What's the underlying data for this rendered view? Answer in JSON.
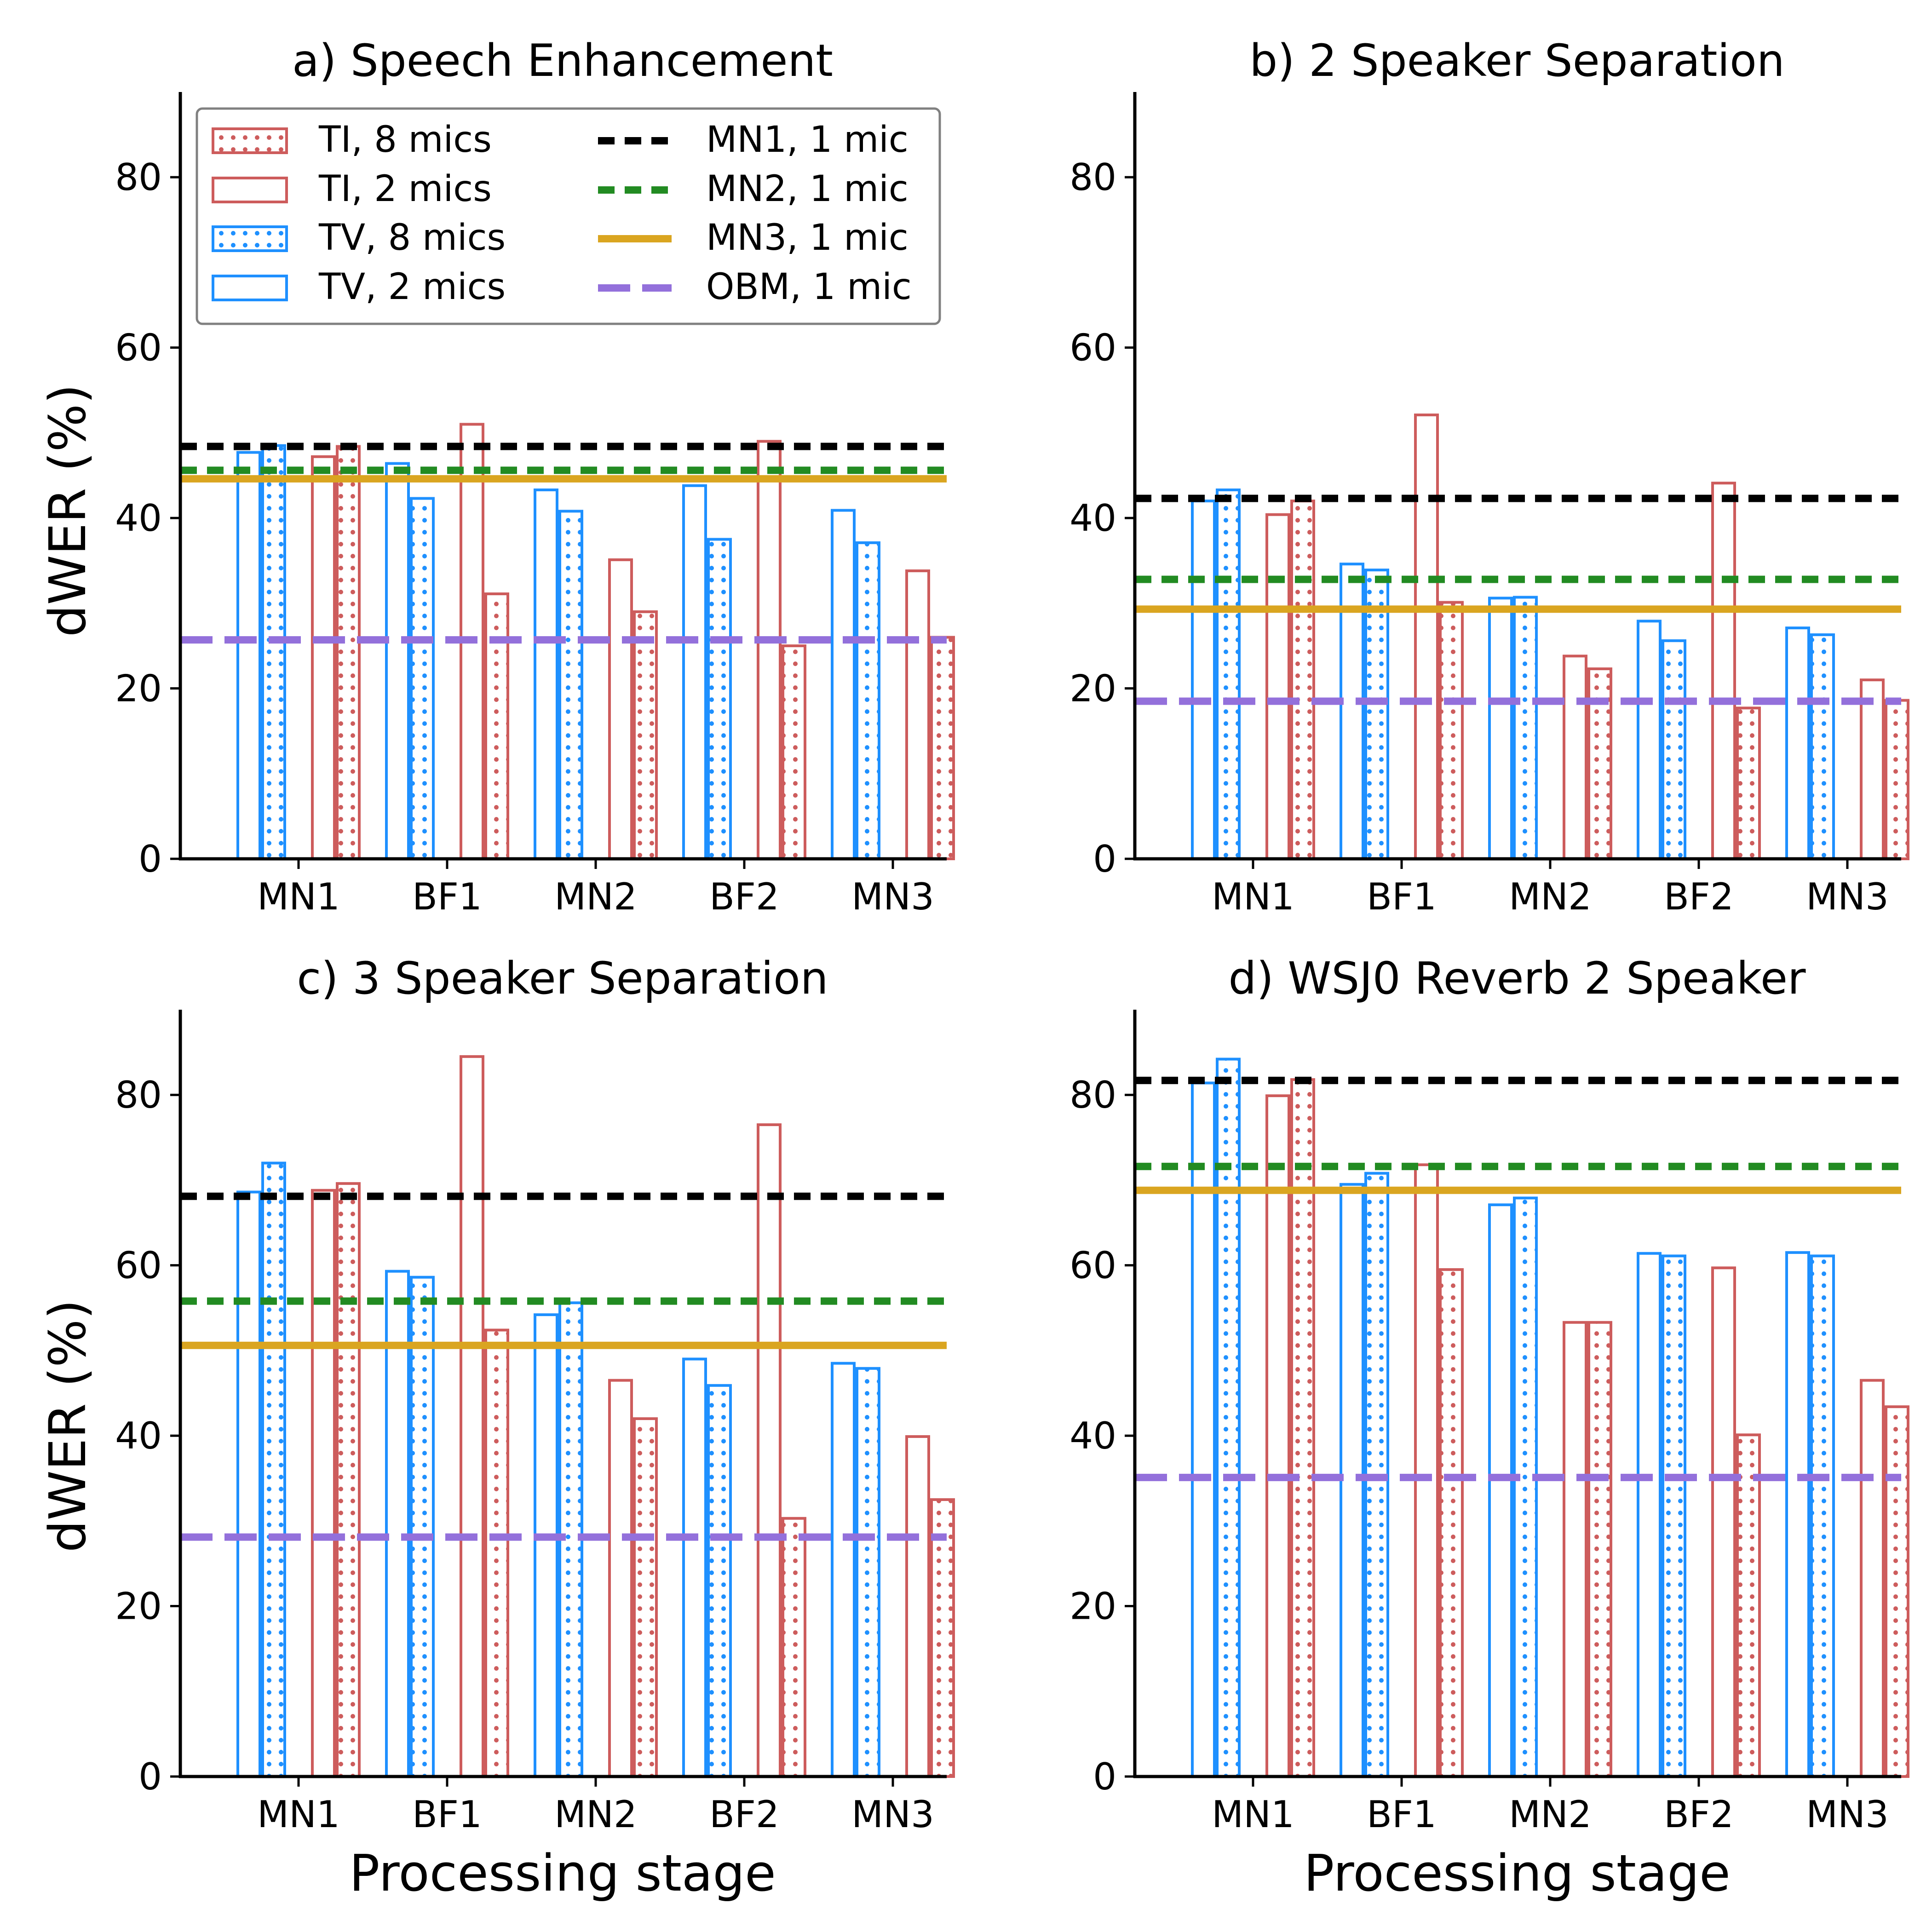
{
  "chart_data": [
    {
      "type": "bar",
      "title": "a) Speech Enhancement",
      "xlabel": "",
      "ylabel": "dWER (%)",
      "ylim": [
        0,
        90
      ],
      "yticks": [
        0,
        20,
        40,
        60,
        80
      ],
      "grid": false,
      "legend": "top-left",
      "categories": [
        "MN1",
        "BF1",
        "MN2",
        "BF2",
        "MN3"
      ],
      "series": [
        {
          "name": "TV, 2 mics",
          "values": [
            47.7,
            46.4,
            43.3,
            43.8,
            40.9
          ]
        },
        {
          "name": "TV, 8 mics",
          "values": [
            48.5,
            42.3,
            40.8,
            37.5,
            37.1
          ]
        },
        {
          "name": "TI, 2 mics",
          "values": [
            47.2,
            51.0,
            35.1,
            49.0,
            33.8
          ]
        },
        {
          "name": "TI, 8 mics",
          "values": [
            48.4,
            31.1,
            29.0,
            25.0,
            26.0
          ]
        }
      ],
      "reference_lines": [
        {
          "name": "MN1, 1 mic",
          "value": 48.4
        },
        {
          "name": "MN2, 1 mic",
          "value": 45.6
        },
        {
          "name": "MN3, 1 mic",
          "value": 44.6
        },
        {
          "name": "OBM, 1 mic",
          "value": 25.7
        }
      ]
    },
    {
      "type": "bar",
      "title": "b) 2 Speaker Separation",
      "xlabel": "",
      "ylabel": "",
      "ylim": [
        0,
        90
      ],
      "yticks": [
        0,
        20,
        40,
        60,
        80
      ],
      "grid": false,
      "categories": [
        "MN1",
        "BF1",
        "MN2",
        "BF2",
        "MN3"
      ],
      "series": [
        {
          "name": "TV, 2 mics",
          "values": [
            42.0,
            34.6,
            30.6,
            27.9,
            27.1
          ]
        },
        {
          "name": "TV, 8 mics",
          "values": [
            43.3,
            33.9,
            30.7,
            25.6,
            26.3
          ]
        },
        {
          "name": "TI, 2 mics",
          "values": [
            40.4,
            52.1,
            23.8,
            44.1,
            21.0
          ]
        },
        {
          "name": "TI, 8 mics",
          "values": [
            42.0,
            30.1,
            22.3,
            17.7,
            18.6
          ]
        }
      ],
      "reference_lines": [
        {
          "name": "MN1, 1 mic",
          "value": 42.3
        },
        {
          "name": "MN2, 1 mic",
          "value": 32.8
        },
        {
          "name": "MN3, 1 mic",
          "value": 29.3
        },
        {
          "name": "OBM, 1 mic",
          "value": 18.5
        }
      ]
    },
    {
      "type": "bar",
      "title": "c) 3 Speaker Separation",
      "xlabel": "Processing stage",
      "ylabel": "dWER (%)",
      "ylim": [
        0,
        90
      ],
      "yticks": [
        0,
        20,
        40,
        60,
        80
      ],
      "grid": false,
      "categories": [
        "MN1",
        "BF1",
        "MN2",
        "BF2",
        "MN3"
      ],
      "series": [
        {
          "name": "TV, 2 mics",
          "values": [
            68.6,
            59.3,
            54.2,
            49.0,
            48.5
          ]
        },
        {
          "name": "TV, 8 mics",
          "values": [
            72.0,
            58.6,
            55.6,
            45.9,
            47.9
          ]
        },
        {
          "name": "TI, 2 mics",
          "values": [
            68.8,
            84.5,
            46.5,
            76.5,
            39.9
          ]
        },
        {
          "name": "TI, 8 mics",
          "values": [
            69.6,
            52.4,
            42.0,
            30.3,
            32.5
          ]
        }
      ],
      "reference_lines": [
        {
          "name": "MN1, 1 mic",
          "value": 68.1
        },
        {
          "name": "MN2, 1 mic",
          "value": 55.8
        },
        {
          "name": "MN3, 1 mic",
          "value": 50.6
        },
        {
          "name": "OBM, 1 mic",
          "value": 28.1
        }
      ]
    },
    {
      "type": "bar",
      "title": "d) WSJ0 Reverb 2 Speaker",
      "xlabel": "Processing stage",
      "ylabel": "",
      "ylim": [
        0,
        90
      ],
      "yticks": [
        0,
        20,
        40,
        60,
        80
      ],
      "grid": false,
      "categories": [
        "MN1",
        "BF1",
        "MN2",
        "BF2",
        "MN3"
      ],
      "series": [
        {
          "name": "TV, 2 mics",
          "values": [
            81.4,
            69.5,
            67.1,
            61.4,
            61.5
          ]
        },
        {
          "name": "TV, 8 mics",
          "values": [
            84.2,
            70.8,
            67.9,
            61.1,
            61.1
          ]
        },
        {
          "name": "TI, 2 mics",
          "values": [
            79.9,
            71.8,
            53.3,
            59.7,
            46.5
          ]
        },
        {
          "name": "TI, 8 mics",
          "values": [
            81.8,
            59.5,
            53.3,
            40.1,
            43.4
          ]
        }
      ],
      "reference_lines": [
        {
          "name": "MN1, 1 mic",
          "value": 81.7
        },
        {
          "name": "MN2, 1 mic",
          "value": 71.6
        },
        {
          "name": "MN3, 1 mic",
          "value": 68.8
        },
        {
          "name": "OBM, 1 mic",
          "value": 35.1
        }
      ]
    }
  ],
  "legend": {
    "entries": [
      {
        "key": "ti8",
        "label": "TI, 8 mics"
      },
      {
        "key": "ti2",
        "label": "TI, 2 mics"
      },
      {
        "key": "tv8",
        "label": "TV, 8 mics"
      },
      {
        "key": "tv2",
        "label": "TV, 2 mics"
      },
      {
        "key": "mn1",
        "label": "MN1, 1 mic"
      },
      {
        "key": "mn2",
        "label": "MN2, 1 mic"
      },
      {
        "key": "mn3",
        "label": "MN3, 1 mic"
      },
      {
        "key": "obm",
        "label": "OBM, 1 mic"
      }
    ]
  },
  "colors": {
    "tv": "#1E90FF",
    "ti": "#CD5C5C",
    "mn1": "#000000",
    "mn2": "#228B22",
    "mn3": "#DAA520",
    "obm": "#9370DB"
  }
}
